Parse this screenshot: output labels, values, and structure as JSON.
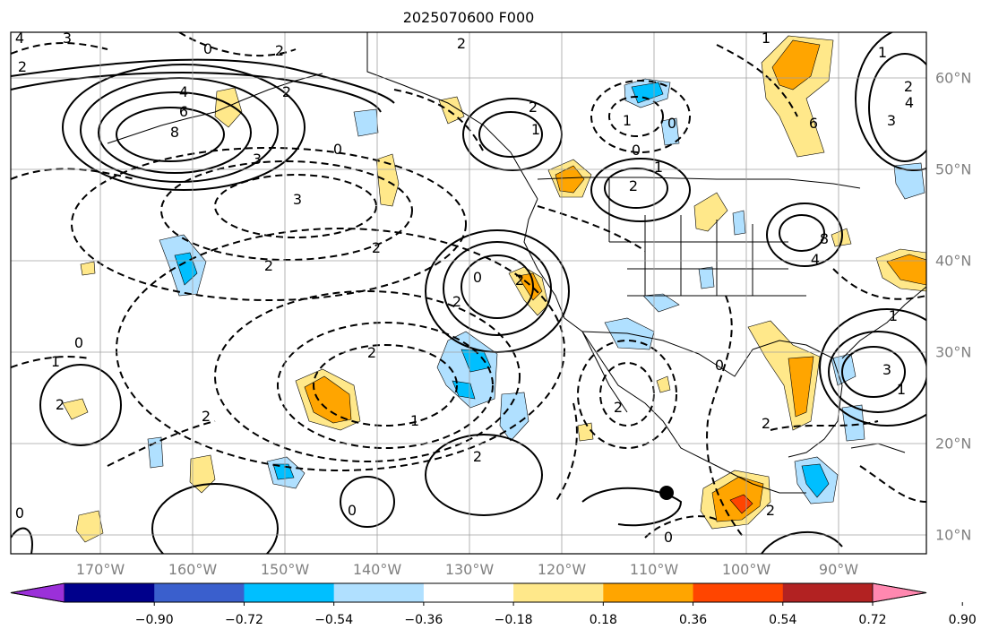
{
  "title": "2025070600 F000",
  "lon_labels": [
    "170°W",
    "160°W",
    "150°W",
    "140°W",
    "130°W",
    "120°W",
    "110°W",
    "100°W",
    "90°W"
  ],
  "lat_labels": [
    "60°N",
    "50°N",
    "40°N",
    "30°N",
    "20°N",
    "10°N"
  ],
  "colorbar": {
    "ticks": [
      "−0.90",
      "−0.72",
      "−0.54",
      "−0.36",
      "−0.18",
      "0.18",
      "0.36",
      "0.54",
      "0.72",
      "0.90"
    ],
    "colors": [
      "#9b30d9",
      "#00008b",
      "#3a5fcd",
      "#00bfff",
      "#b0e0ff",
      "#ffffff",
      "#ffe88a",
      "#ffa500",
      "#ff4500",
      "#b22222",
      "#ff88b0"
    ]
  },
  "contour_labels": [
    "4",
    "3",
    "2",
    "0",
    "2",
    "2",
    "4",
    "6",
    "8",
    "3",
    "0",
    "3",
    "2",
    "2",
    "2",
    "2",
    "1",
    "0",
    "2",
    "1",
    "2",
    "0",
    "2",
    "2",
    "1",
    "2",
    "0",
    "0",
    "1",
    "2",
    "2",
    "2",
    "0",
    "2",
    "2",
    "0",
    "0",
    "1",
    "1",
    "4",
    "3",
    "2",
    "6",
    "8",
    "4",
    "3",
    "1",
    "0",
    "1",
    "1"
  ],
  "colors": {
    "grid": "#a0a0a0",
    "positive_shade": "#ffe88a",
    "strong_positive": "#ffa500",
    "max_positive": "#ff4500",
    "negative_shade": "#b0e0ff",
    "strong_negative": "#00bfff"
  },
  "marker": "filled-circle"
}
